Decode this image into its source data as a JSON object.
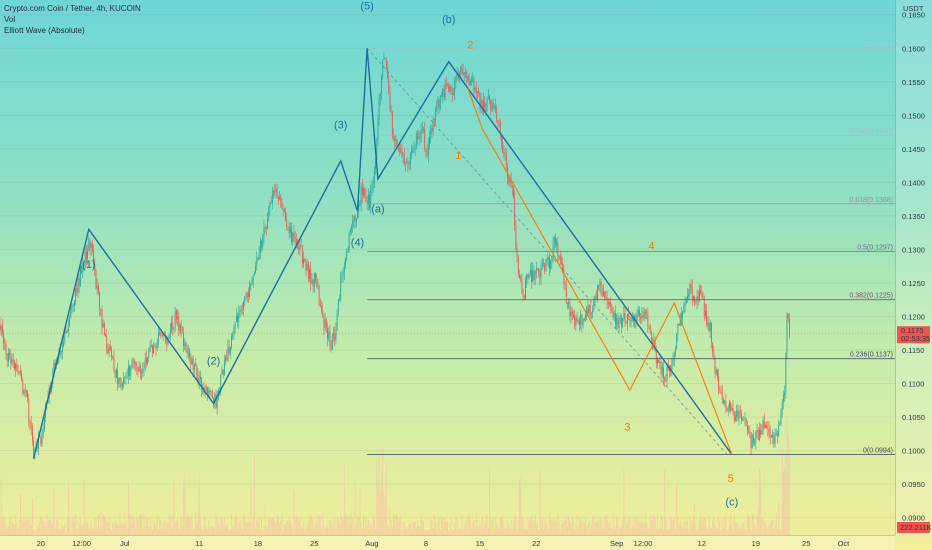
{
  "legend": {
    "symbol_line": "Crypto.com Coin / Tether, 4h, KUCOIN",
    "vol_label": "Vol",
    "indicator_label": "Elliott Wave (Absolute)"
  },
  "currency_label": "USDT",
  "colors": {
    "bg_top": "#6fd6d6",
    "bg_bottom": "#f3ee9a",
    "up_candle": "#26a69a",
    "down_candle": "#ef5350",
    "wave_line": "#1e6f9f",
    "orange_wave": "#f57c00",
    "fib_line": "#5b6b8a",
    "current_price_tag": "#ef5350",
    "volume_bar": "#f7b7a8"
  },
  "chart_data": {
    "type": "line",
    "title": "",
    "xlabel": "",
    "ylabel": "",
    "ylim": [
      0.0874,
      0.1672
    ],
    "price_ticks": [
      0.09,
      0.095,
      0.1,
      0.105,
      0.11,
      0.115,
      0.12,
      0.125,
      0.13,
      0.135,
      0.14,
      0.145,
      0.15,
      0.155,
      0.16,
      0.165
    ],
    "price_tick_labels": [
      "0.0900",
      "0.0950",
      "0.1000",
      "0.1050",
      "0.1100",
      "0.1150",
      "0.1200",
      "0.1250",
      "0.1300",
      "0.1350",
      "0.1400",
      "0.1450",
      "0.1500",
      "0.1550",
      "0.1600",
      "0.1650"
    ],
    "x_ticks": [
      {
        "label": "20",
        "bar": 34
      },
      {
        "label": "12:00",
        "bar": 68
      },
      {
        "label": "Jul",
        "bar": 104
      },
      {
        "label": "11",
        "bar": 166
      },
      {
        "label": "18",
        "bar": 215
      },
      {
        "label": "25",
        "bar": 262
      },
      {
        "label": "Aug",
        "bar": 310
      },
      {
        "label": "8",
        "bar": 355
      },
      {
        "label": "15",
        "bar": 400
      },
      {
        "label": "22",
        "bar": 447
      },
      {
        "label": "Sep",
        "bar": 514
      },
      {
        "label": "12:00",
        "bar": 536
      },
      {
        "label": "12",
        "bar": 585
      },
      {
        "label": "19",
        "bar": 630
      },
      {
        "label": "25",
        "bar": 672
      },
      {
        "label": "Oct",
        "bar": 703
      }
    ],
    "bar_count": 746,
    "last_bar": 658,
    "close_anchors": [
      [
        0,
        0.119
      ],
      [
        4,
        0.115
      ],
      [
        10,
        0.113
      ],
      [
        16,
        0.111
      ],
      [
        22,
        0.108
      ],
      [
        28,
        0.0995
      ],
      [
        34,
        0.102
      ],
      [
        40,
        0.108
      ],
      [
        46,
        0.113
      ],
      [
        52,
        0.116
      ],
      [
        58,
        0.12
      ],
      [
        64,
        0.124
      ],
      [
        70,
        0.129
      ],
      [
        76,
        0.131
      ],
      [
        80,
        0.125
      ],
      [
        86,
        0.118
      ],
      [
        92,
        0.114
      ],
      [
        98,
        0.111
      ],
      [
        104,
        0.11
      ],
      [
        110,
        0.113
      ],
      [
        116,
        0.112
      ],
      [
        122,
        0.114
      ],
      [
        128,
        0.115
      ],
      [
        134,
        0.118
      ],
      [
        140,
        0.116
      ],
      [
        146,
        0.12
      ],
      [
        150,
        0.118
      ],
      [
        156,
        0.115
      ],
      [
        162,
        0.112
      ],
      [
        168,
        0.11
      ],
      [
        174,
        0.109
      ],
      [
        180,
        0.107
      ],
      [
        186,
        0.112
      ],
      [
        192,
        0.116
      ],
      [
        198,
        0.12
      ],
      [
        204,
        0.122
      ],
      [
        210,
        0.126
      ],
      [
        216,
        0.13
      ],
      [
        222,
        0.134
      ],
      [
        228,
        0.138
      ],
      [
        234,
        0.138
      ],
      [
        240,
        0.133
      ],
      [
        246,
        0.131
      ],
      [
        252,
        0.129
      ],
      [
        258,
        0.126
      ],
      [
        264,
        0.125
      ],
      [
        268,
        0.12
      ],
      [
        272,
        0.118
      ],
      [
        276,
        0.116
      ],
      [
        280,
        0.118
      ],
      [
        284,
        0.125
      ],
      [
        290,
        0.131
      ],
      [
        296,
        0.135
      ],
      [
        302,
        0.139
      ],
      [
        308,
        0.137
      ],
      [
        312,
        0.141
      ],
      [
        316,
        0.152
      ],
      [
        320,
        0.159
      ],
      [
        324,
        0.153
      ],
      [
        328,
        0.146
      ],
      [
        334,
        0.144
      ],
      [
        340,
        0.143
      ],
      [
        346,
        0.146
      ],
      [
        352,
        0.148
      ],
      [
        356,
        0.144
      ],
      [
        360,
        0.148
      ],
      [
        366,
        0.152
      ],
      [
        372,
        0.154
      ],
      [
        378,
        0.154
      ],
      [
        384,
        0.157
      ],
      [
        390,
        0.155
      ],
      [
        396,
        0.154
      ],
      [
        402,
        0.151
      ],
      [
        408,
        0.152
      ],
      [
        412,
        0.151
      ],
      [
        416,
        0.148
      ],
      [
        420,
        0.144
      ],
      [
        424,
        0.141
      ],
      [
        428,
        0.137
      ],
      [
        430,
        0.131
      ],
      [
        432,
        0.127
      ],
      [
        436,
        0.123
      ],
      [
        440,
        0.126
      ],
      [
        446,
        0.126
      ],
      [
        452,
        0.127
      ],
      [
        458,
        0.128
      ],
      [
        462,
        0.131
      ],
      [
        466,
        0.129
      ],
      [
        470,
        0.125
      ],
      [
        474,
        0.121
      ],
      [
        480,
        0.119
      ],
      [
        486,
        0.12
      ],
      [
        492,
        0.121
      ],
      [
        496,
        0.123
      ],
      [
        500,
        0.125
      ],
      [
        506,
        0.122
      ],
      [
        510,
        0.12
      ],
      [
        516,
        0.119
      ],
      [
        522,
        0.12
      ],
      [
        528,
        0.12
      ],
      [
        534,
        0.12
      ],
      [
        538,
        0.12
      ],
      [
        542,
        0.118
      ],
      [
        548,
        0.113
      ],
      [
        554,
        0.111
      ],
      [
        560,
        0.113
      ],
      [
        566,
        0.119
      ],
      [
        570,
        0.122
      ],
      [
        574,
        0.124
      ],
      [
        578,
        0.123
      ],
      [
        584,
        0.123
      ],
      [
        588,
        0.12
      ],
      [
        592,
        0.118
      ],
      [
        596,
        0.112
      ],
      [
        600,
        0.109
      ],
      [
        606,
        0.107
      ],
      [
        612,
        0.105
      ],
      [
        618,
        0.105
      ],
      [
        622,
        0.104
      ],
      [
        626,
        0.101
      ],
      [
        630,
        0.102
      ],
      [
        634,
        0.103
      ],
      [
        638,
        0.104
      ],
      [
        642,
        0.102
      ],
      [
        646,
        0.102
      ],
      [
        650,
        0.104
      ],
      [
        654,
        0.109
      ],
      [
        656,
        0.121
      ],
      [
        658,
        0.1175
      ]
    ],
    "current_price": {
      "value": 0.1175,
      "label": "0.1175",
      "countdown": "02:53:35"
    },
    "volume_label": "222.211K",
    "fib_levels": [
      {
        "label": "0(0.0994)",
        "value": 0.0994,
        "style": "solid",
        "color": "#3c4a66",
        "x_start_bar": 306
      },
      {
        "label": "0.236(0.1137)",
        "value": 0.1137,
        "style": "solid",
        "color": "#3c4a66",
        "x_start_bar": 306
      },
      {
        "label": "0.382(0.1225)",
        "value": 0.1225,
        "style": "solid",
        "color": "#8a4a6a",
        "x_start_bar": 306
      },
      {
        "label": "0.5(0.1297)",
        "value": 0.1297,
        "style": "solid",
        "color": "#6a6a8a",
        "x_start_bar": 306
      },
      {
        "label": "0.618(0.1368)",
        "value": 0.1368,
        "style": "solid",
        "color": "#a884b6",
        "x_start_bar": 306
      },
      {
        "label": "0.786(0.1470)",
        "value": 0.147,
        "style": "faded",
        "color": "#b8a8c8",
        "x_start_bar": 306
      },
      {
        "label": "1(0.1600)",
        "value": 0.16,
        "style": "faded",
        "color": "#c8c0d8",
        "x_start_bar": 306
      }
    ],
    "main_wave": {
      "points": [
        [
          28,
          0.0988
        ],
        [
          74,
          0.133
        ],
        [
          178,
          0.107
        ],
        [
          284,
          0.1432
        ],
        [
          298,
          0.1357
        ],
        [
          306,
          0.16
        ],
        [
          315,
          0.1405
        ],
        [
          374,
          0.158
        ],
        [
          610,
          0.0994
        ]
      ],
      "labels": [
        {
          "text": "(1)",
          "at": [
            74,
            0.133
          ],
          "dy": -0.0058
        },
        {
          "text": "(2)",
          "at": [
            178,
            0.107
          ],
          "dy": 0.0058
        },
        {
          "text": "(3)",
          "at": [
            284,
            0.1432
          ],
          "dy": 0.0048
        },
        {
          "text": "(4)",
          "at": [
            298,
            0.1357
          ],
          "dy": -0.0052
        },
        {
          "text": "(5)",
          "at": [
            306,
            0.16
          ],
          "dy": 0.0058
        },
        {
          "text": "(a)",
          "at": [
            315,
            0.1405
          ],
          "dy": -0.005
        },
        {
          "text": "(b)",
          "at": [
            374,
            0.158
          ],
          "dy": 0.0058
        },
        {
          "text": "(c)",
          "at": [
            610,
            0.0994
          ],
          "dy": -0.0076
        }
      ]
    },
    "orange_wave": {
      "points": [
        [
          390,
          0.154
        ],
        [
          402,
          0.148
        ],
        [
          525,
          0.109
        ],
        [
          562,
          0.122
        ],
        [
          610,
          0.0994
        ]
      ],
      "labels": [
        {
          "text": "2",
          "at": [
            392,
            0.16
          ],
          "dy": 0
        },
        {
          "text": "1",
          "at": [
            382,
            0.1435
          ],
          "dy": 0
        },
        {
          "text": "3",
          "at": [
            523,
            0.103
          ],
          "dy": 0
        },
        {
          "text": "4",
          "at": [
            543,
            0.13
          ],
          "dy": 0
        },
        {
          "text": "5",
          "at": [
            609,
            0.0953
          ],
          "dy": 0
        }
      ]
    },
    "dashed_trend": {
      "points": [
        [
          306,
          0.16
        ],
        [
          606,
          0.0994
        ]
      ]
    }
  }
}
